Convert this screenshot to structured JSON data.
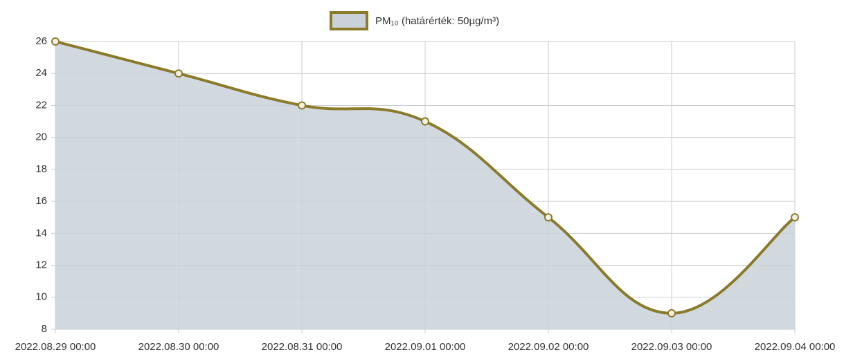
{
  "chart_data": {
    "type": "line",
    "categories": [
      "2022.08.29 00:00",
      "2022.08.30 00:00",
      "2022.08.31 00:00",
      "2022.09.01 00:00",
      "2022.09.02 00:00",
      "2022.09.03 00:00",
      "2022.09.04 00:00"
    ],
    "series": [
      {
        "name": "PM₁₀ (határérték: 50µg/m³)",
        "color": "#8a7a2a",
        "fill": "#c9d2d9",
        "values": [
          26,
          24,
          22,
          21,
          15,
          9,
          15
        ]
      }
    ],
    "ylim": [
      8,
      26
    ],
    "yticks": [
      8,
      10,
      12,
      14,
      16,
      18,
      20,
      22,
      24,
      26
    ],
    "grid": true,
    "legend": "top"
  }
}
